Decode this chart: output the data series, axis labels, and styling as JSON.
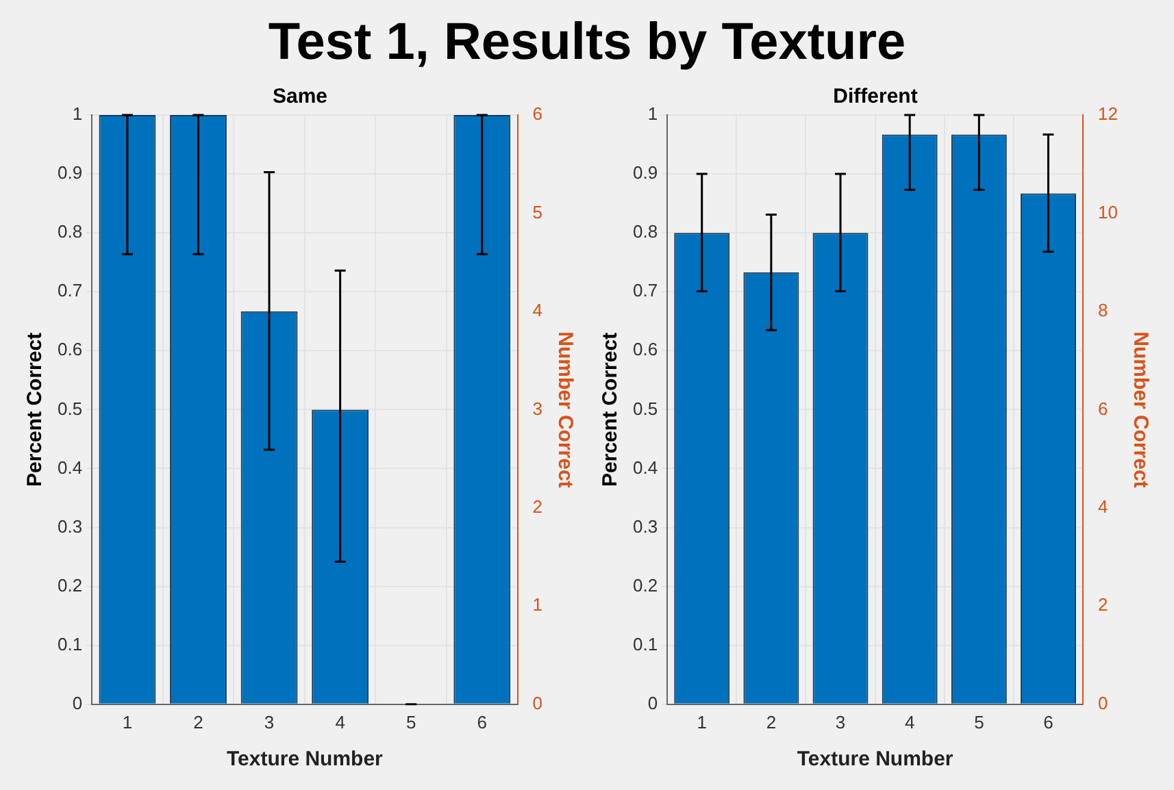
{
  "chart_data": [
    {
      "type": "bar",
      "title": "Test 1, Results by Texture",
      "subtitle": "Same",
      "xlabel": "Texture Number",
      "ylabel": "Percent Correct",
      "y2label": "Number Correct",
      "categories": [
        "1",
        "2",
        "3",
        "4",
        "5",
        "6"
      ],
      "series": [
        {
          "color": "#0072bd",
          "values": [
            1,
            1,
            0.667,
            0.5,
            0,
            1
          ],
          "errors": [
            [
              0.764,
              1
            ],
            [
              0.764,
              1
            ],
            [
              0.432,
              0.903
            ],
            [
              0.242,
              0.736
            ],
            [
              0,
              0
            ],
            [
              0.764,
              1
            ]
          ]
        }
      ],
      "ylim": [
        0,
        1
      ],
      "yticks": [
        0,
        0.1,
        0.2,
        0.3,
        0.4,
        0.5,
        0.6,
        0.7,
        0.8,
        0.9,
        1
      ],
      "y2lim": [
        0,
        6
      ],
      "y2ticks": [
        0,
        1,
        2,
        3,
        4,
        5,
        6
      ],
      "grid": true,
      "legend": false
    },
    {
      "type": "bar",
      "subtitle": "Different",
      "xlabel": "Texture Number",
      "ylabel": "Percent Correct",
      "y2label": "Number Correct",
      "categories": [
        "1",
        "2",
        "3",
        "4",
        "5",
        "6"
      ],
      "series": [
        {
          "color": "#0072bd",
          "values": [
            0.8,
            0.733,
            0.8,
            0.967,
            0.967,
            0.867
          ],
          "errors": [
            [
              0.701,
              0.9
            ],
            [
              0.635,
              0.831
            ],
            [
              0.701,
              0.9
            ],
            [
              0.873,
              1
            ],
            [
              0.873,
              1
            ],
            [
              0.768,
              0.967
            ]
          ]
        }
      ],
      "ylim": [
        0,
        1
      ],
      "yticks": [
        0,
        0.1,
        0.2,
        0.3,
        0.4,
        0.5,
        0.6,
        0.7,
        0.8,
        0.9,
        1
      ],
      "y2lim": [
        0,
        12
      ],
      "y2ticks": [
        0,
        2,
        4,
        6,
        8,
        10,
        12
      ],
      "grid": true,
      "legend": false
    }
  ]
}
